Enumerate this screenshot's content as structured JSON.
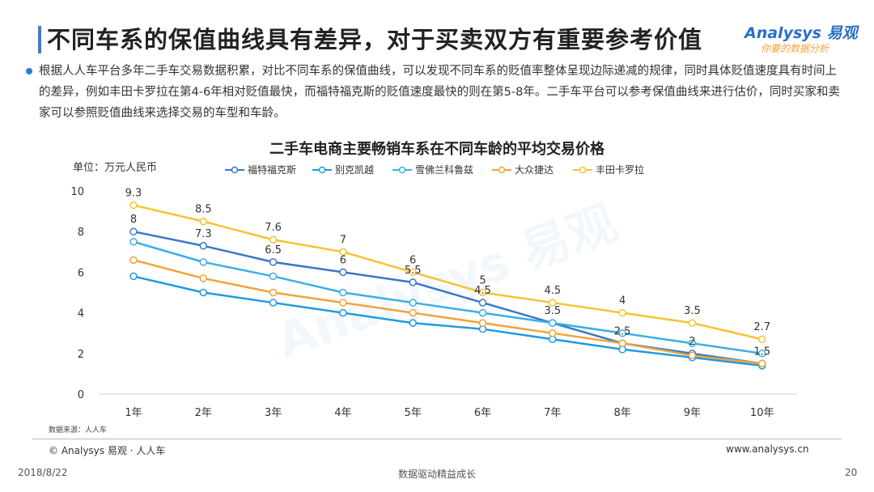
{
  "header": {
    "title": "不同车系的保值曲线具有差异，对于买卖双方有重要参考价值",
    "logo_main": "Analysys 易观",
    "logo_sub": "你要的数据分析"
  },
  "description": "根据人人车平台多年二手车交易数据积累，对比不同车系的保值曲线，可以发现不同车系的贬值率整体呈现边际递减的规律，同时具体贬值速度具有时间上的差异，例如丰田卡罗拉在第4-6年相对贬值最快，而福特福克斯的贬值速度最快的则在第5-8年。二手车平台可以参考保值曲线来进行估价，同时买家和卖家可以参照贬值曲线来选择交易的车型和车龄。",
  "chart_data": {
    "type": "line",
    "title": "二手车电商主要畅销车系在不同车龄的平均交易价格",
    "ylabel": "单位：万元人民币",
    "xlabel": "",
    "categories": [
      "1年",
      "2年",
      "3年",
      "4年",
      "5年",
      "6年",
      "7年",
      "8年",
      "9年",
      "10年"
    ],
    "ylim": [
      0,
      10
    ],
    "yticks": [
      0,
      2,
      4,
      6,
      8,
      10
    ],
    "grid": false,
    "legend": "top",
    "series": [
      {
        "name": "福特福克斯",
        "color": "#3a78c9",
        "values": [
          8,
          7.3,
          6.5,
          6,
          5.5,
          4.5,
          3.5,
          2.5,
          2,
          1.5
        ],
        "labels": [
          "8",
          "7.3",
          "6.5",
          "6",
          "5.5",
          "4.5",
          "3.5",
          "2.5",
          "2",
          "1.5"
        ]
      },
      {
        "name": "别克凯越",
        "color": "#1e9be0",
        "values": [
          5.8,
          5.0,
          4.5,
          4.0,
          3.5,
          3.2,
          2.7,
          2.2,
          1.8,
          1.4
        ],
        "labels": []
      },
      {
        "name": "雪佛兰科鲁兹",
        "color": "#3aaee8",
        "values": [
          7.5,
          6.5,
          5.8,
          5.0,
          4.5,
          4.0,
          3.5,
          3.0,
          2.5,
          2.0
        ],
        "labels": []
      },
      {
        "name": "大众捷达",
        "color": "#f2a33a",
        "values": [
          6.6,
          5.7,
          5.0,
          4.5,
          4.0,
          3.5,
          3.0,
          2.5,
          1.9,
          1.5
        ],
        "labels": []
      },
      {
        "name": "丰田卡罗拉",
        "color": "#f7c233",
        "values": [
          9.3,
          8.5,
          7.6,
          7.0,
          6.0,
          5.0,
          4.5,
          4.0,
          3.5,
          2.7
        ],
        "labels": [
          "9.3",
          "8.5",
          "7.6",
          "7",
          "6",
          "5",
          "4.5",
          "4",
          "3.5",
          "2.7"
        ]
      }
    ]
  },
  "footer": {
    "source": "数据来源：人人车",
    "copyright": "© Analysys 易观 · 人人车",
    "website": "www.analysys.cn",
    "date": "2018/8/22",
    "slogan": "数据驱动精益成长",
    "page": "20"
  }
}
